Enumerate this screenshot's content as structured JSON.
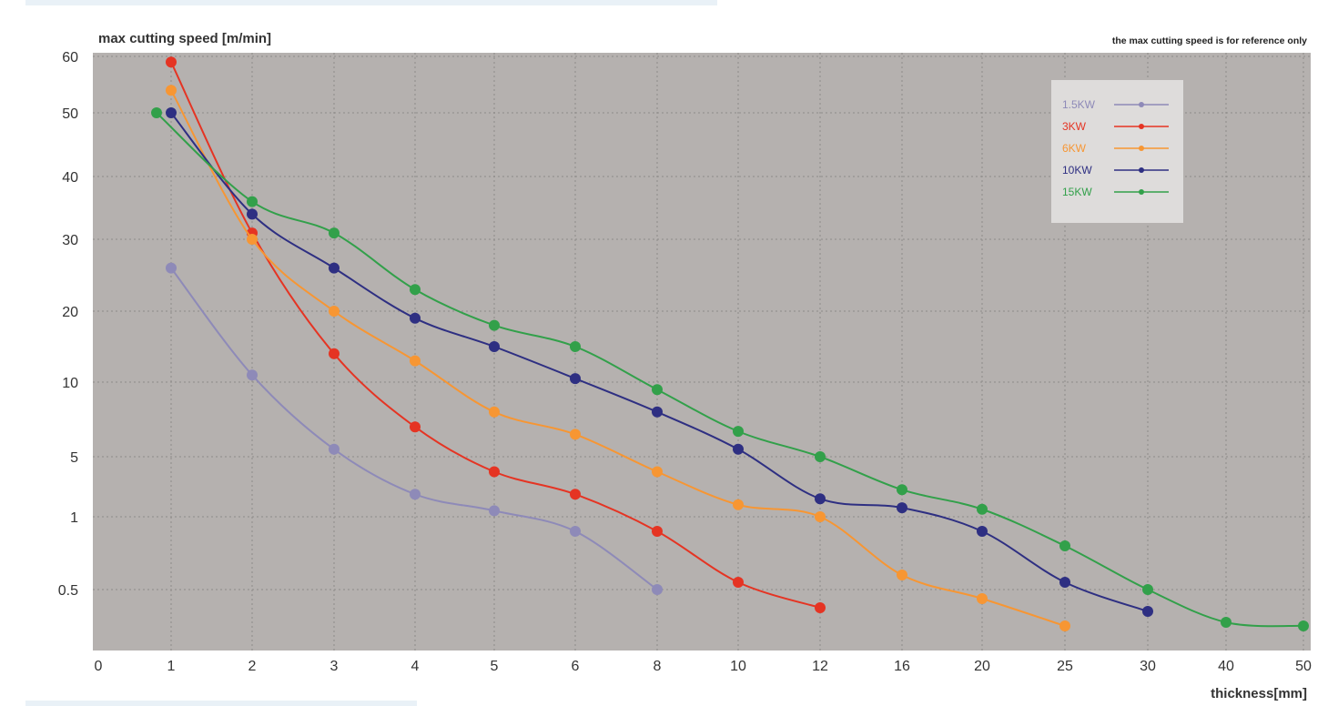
{
  "chart_data": {
    "type": "line",
    "ylabel": "max cutting speed  [m/min]",
    "xlabel": "thickness[mm]",
    "note": "the max cutting speed is for reference only",
    "x_categories": [
      "0",
      "1",
      "2",
      "3",
      "4",
      "5",
      "6",
      "8",
      "10",
      "12",
      "16",
      "20",
      "25",
      "30",
      "40",
      "50"
    ],
    "y_ticks": [
      "60",
      "50",
      "40",
      "30",
      "20",
      "10",
      "5",
      "1",
      "0.5"
    ],
    "grid": true,
    "legend_position": "top-right",
    "background_color": "#b5b1af",
    "series": [
      {
        "name": "1.5KW",
        "color": "#8e8ab8",
        "points": [
          [
            1,
            26
          ],
          [
            2,
            11
          ],
          [
            3,
            5.5
          ],
          [
            4,
            2.5
          ],
          [
            5,
            1.4
          ],
          [
            6,
            0.9
          ],
          [
            8,
            0.5
          ]
        ]
      },
      {
        "name": "3KW",
        "color": "#e53423",
        "points": [
          [
            1,
            59
          ],
          [
            2,
            31
          ],
          [
            3,
            14
          ],
          [
            4,
            7
          ],
          [
            5,
            4
          ],
          [
            6,
            2.5
          ],
          [
            8,
            0.9
          ],
          [
            10,
            0.55
          ],
          [
            12,
            0.4
          ]
        ]
      },
      {
        "name": "6KW",
        "color": "#f79633",
        "points": [
          [
            1,
            54
          ],
          [
            2,
            30
          ],
          [
            3,
            20
          ],
          [
            4,
            13
          ],
          [
            5,
            8
          ],
          [
            6,
            6.5
          ],
          [
            8,
            4
          ],
          [
            10,
            1.8
          ],
          [
            12,
            1
          ],
          [
            16,
            0.6
          ],
          [
            20,
            0.45
          ],
          [
            25,
            0.3
          ]
        ]
      },
      {
        "name": "10KW",
        "color": "#2e2f82",
        "points": [
          [
            1,
            50
          ],
          [
            2,
            34
          ],
          [
            3,
            26
          ],
          [
            4,
            19
          ],
          [
            5,
            15
          ],
          [
            6,
            10.5
          ],
          [
            8,
            8
          ],
          [
            10,
            5.5
          ],
          [
            12,
            2.2
          ],
          [
            16,
            1.6
          ],
          [
            20,
            0.9
          ],
          [
            25,
            0.55
          ],
          [
            30,
            0.38
          ]
        ]
      },
      {
        "name": "15KW",
        "color": "#32a04a",
        "points": [
          [
            0.8,
            50
          ],
          [
            2,
            36
          ],
          [
            3,
            31
          ],
          [
            4,
            23
          ],
          [
            5,
            18
          ],
          [
            6,
            15
          ],
          [
            8,
            9.5
          ],
          [
            10,
            6.7
          ],
          [
            12,
            5
          ],
          [
            16,
            2.8
          ],
          [
            20,
            1.5
          ],
          [
            25,
            0.8
          ],
          [
            30,
            0.5
          ],
          [
            40,
            0.32
          ],
          [
            50,
            0.3
          ]
        ]
      }
    ]
  }
}
